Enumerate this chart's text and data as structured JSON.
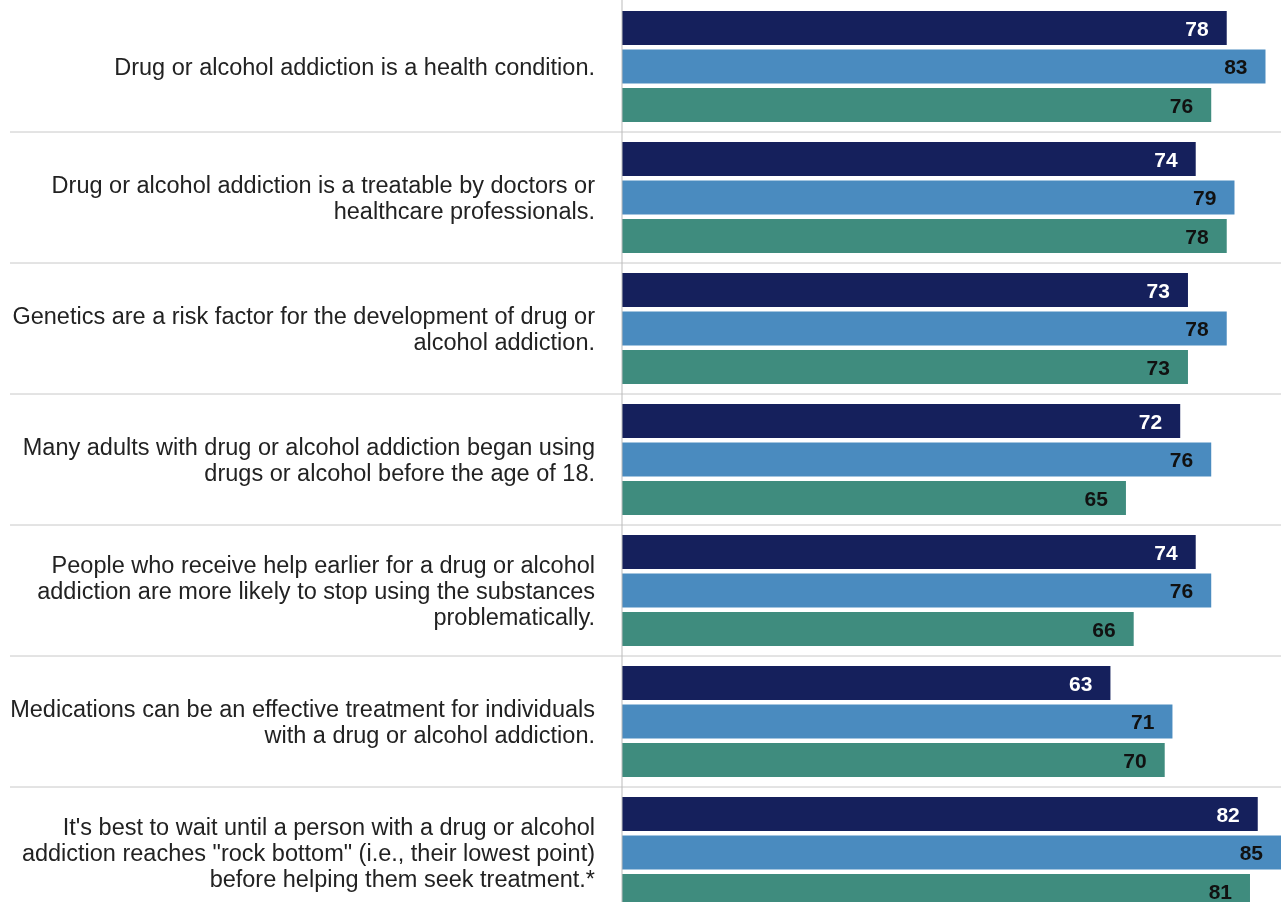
{
  "chart_data": {
    "type": "bar",
    "orientation": "horizontal",
    "data_labels": true,
    "categories": [
      "Drug or alcohol addiction is a health condition.",
      "Drug or alcohol addiction is a treatable by doctors or healthcare professionals.",
      "Genetics are a risk factor for the development of drug or alcohol addiction.",
      "Many adults with drug or alcohol addiction began using drugs or alcohol before the age of 18.",
      "People who receive help earlier for a drug or alcohol addiction are more likely to stop using the substances problematically.",
      "Medications can be an effective treatment for individuals with a drug or alcohol addiction.",
      "It's best to wait until a person with a drug or alcohol addiction reaches \"rock bottom\" (i.e., their lowest point) before helping them seek treatment.*"
    ],
    "series": [
      {
        "color": "#15205c",
        "values": [
          78,
          74,
          73,
          72,
          74,
          63,
          82
        ]
      },
      {
        "color": "#4a8bbf",
        "values": [
          83,
          79,
          78,
          76,
          76,
          71,
          85
        ]
      },
      {
        "color": "#3f8c7e",
        "values": [
          76,
          78,
          73,
          65,
          66,
          70,
          81
        ]
      }
    ]
  }
}
